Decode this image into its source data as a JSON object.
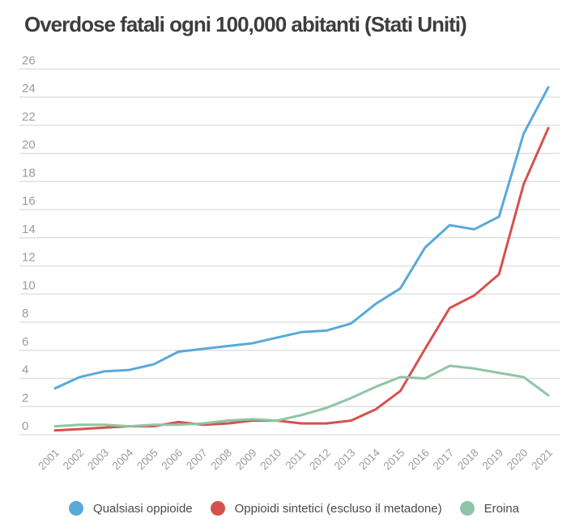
{
  "title": "Overdose fatali ogni 100,000 abitanti (Stati Uniti)",
  "colors": {
    "title_text": "#3d3d3d",
    "axis_text": "#9b9b9b",
    "grid_line": "#e0e0e0",
    "legend_text": "#4a4a4a",
    "blue": "#59a9db",
    "red": "#d5514e",
    "green": "#8ec5a6"
  },
  "legend": [
    {
      "label": "Qualsiasi oppioide",
      "color": "#59a9db"
    },
    {
      "label": "Oppioidi sintetici (escluso il metadone)",
      "color": "#d5514e"
    },
    {
      "label": "Eroina",
      "color": "#8ec5a6"
    }
  ],
  "chart_data": {
    "type": "line",
    "title": "Overdose fatali ogni 100,000 abitanti (Stati Uniti)",
    "xlabel": "",
    "ylabel": "",
    "x": [
      2001,
      2002,
      2003,
      2004,
      2005,
      2006,
      2007,
      2008,
      2009,
      2010,
      2011,
      2012,
      2013,
      2014,
      2015,
      2016,
      2017,
      2018,
      2019,
      2020,
      2021
    ],
    "series": [
      {
        "name": "Qualsiasi oppioide",
        "color": "#59a9db",
        "values": [
          3.3,
          4.1,
          4.5,
          4.6,
          5.0,
          5.9,
          6.1,
          6.3,
          6.5,
          6.9,
          7.3,
          7.4,
          7.9,
          9.3,
          10.4,
          13.3,
          14.9,
          14.6,
          15.5,
          21.4,
          24.7
        ]
      },
      {
        "name": "Oppioidi sintetici (escluso il metadone)",
        "color": "#d5514e",
        "values": [
          0.3,
          0.4,
          0.5,
          0.6,
          0.6,
          0.9,
          0.7,
          0.8,
          1.0,
          1.0,
          0.8,
          0.8,
          1.0,
          1.8,
          3.1,
          6.1,
          9.0,
          9.9,
          11.4,
          17.8,
          21.8
        ]
      },
      {
        "name": "Eroina",
        "color": "#8ec5a6",
        "values": [
          0.6,
          0.7,
          0.7,
          0.6,
          0.7,
          0.7,
          0.8,
          1.0,
          1.1,
          1.0,
          1.4,
          1.9,
          2.6,
          3.4,
          4.1,
          4.0,
          4.9,
          4.7,
          4.4,
          4.1,
          2.8
        ]
      }
    ],
    "ylim": [
      0,
      26
    ],
    "ytick_step": 2,
    "grid": true,
    "legend_position": "bottom"
  }
}
